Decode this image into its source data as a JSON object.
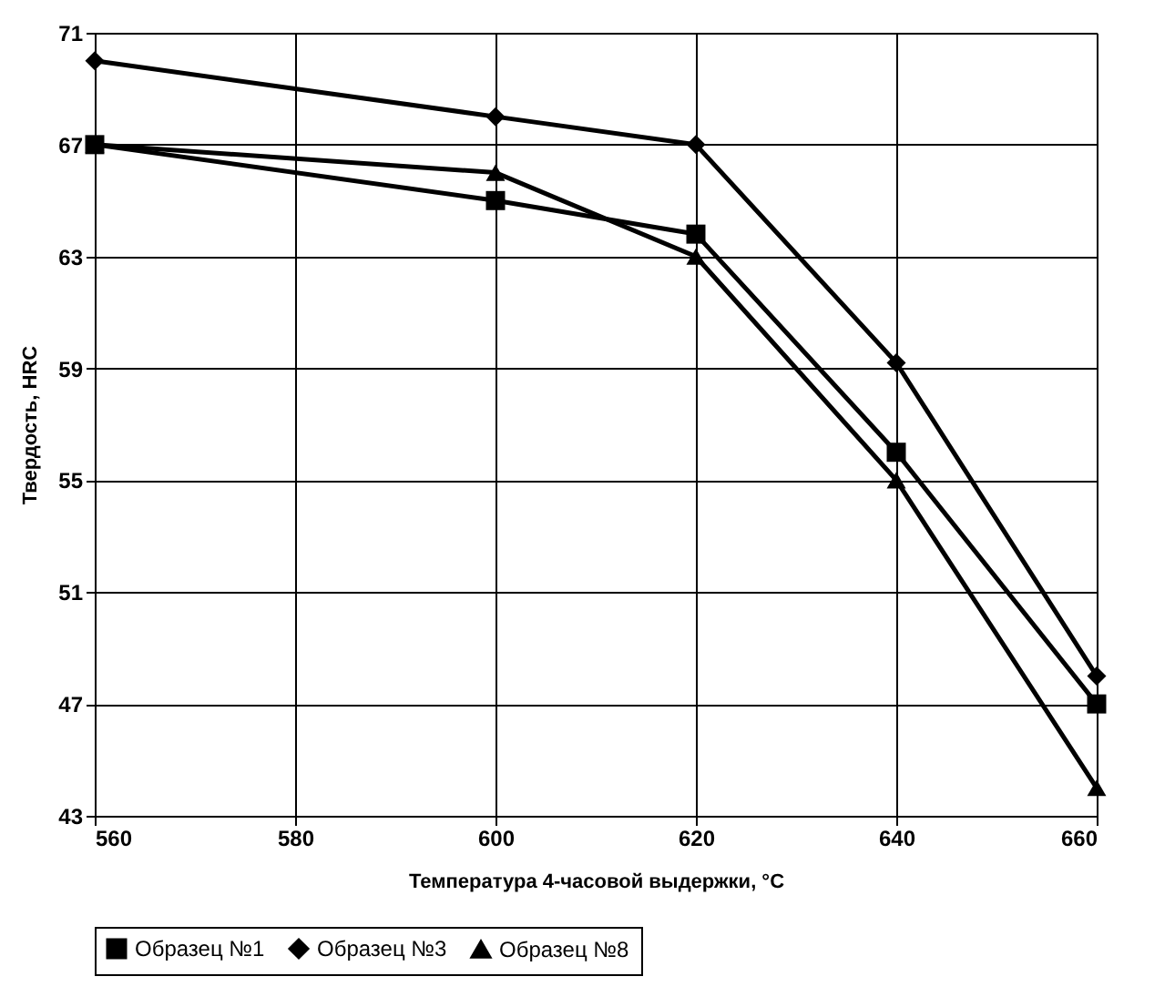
{
  "chart_data": {
    "type": "line",
    "xlabel": "Температура 4-часовой выдержки, °С",
    "ylabel": "Твердость, HRC",
    "x": [
      560,
      600,
      620,
      640,
      660
    ],
    "series": [
      {
        "name": "Образец №1",
        "color": "#000000",
        "marker": "square",
        "values": [
          67,
          65,
          63.8,
          56,
          47
        ]
      },
      {
        "name": "Образец №3",
        "color": "#000000",
        "marker": "diamond",
        "values": [
          70,
          68,
          67,
          59.2,
          48
        ]
      },
      {
        "name": "Образец №8",
        "color": "#000000",
        "marker": "triangle",
        "values": [
          67,
          66,
          63,
          55,
          44
        ]
      }
    ],
    "xlim": [
      560,
      660
    ],
    "xticks": [
      560,
      580,
      600,
      620,
      640,
      660
    ],
    "ylim": [
      43,
      71
    ],
    "yticks": [
      43,
      47,
      51,
      55,
      59,
      63,
      67,
      71
    ],
    "grid": true,
    "legend": "bottom",
    "line_style": "solid"
  }
}
